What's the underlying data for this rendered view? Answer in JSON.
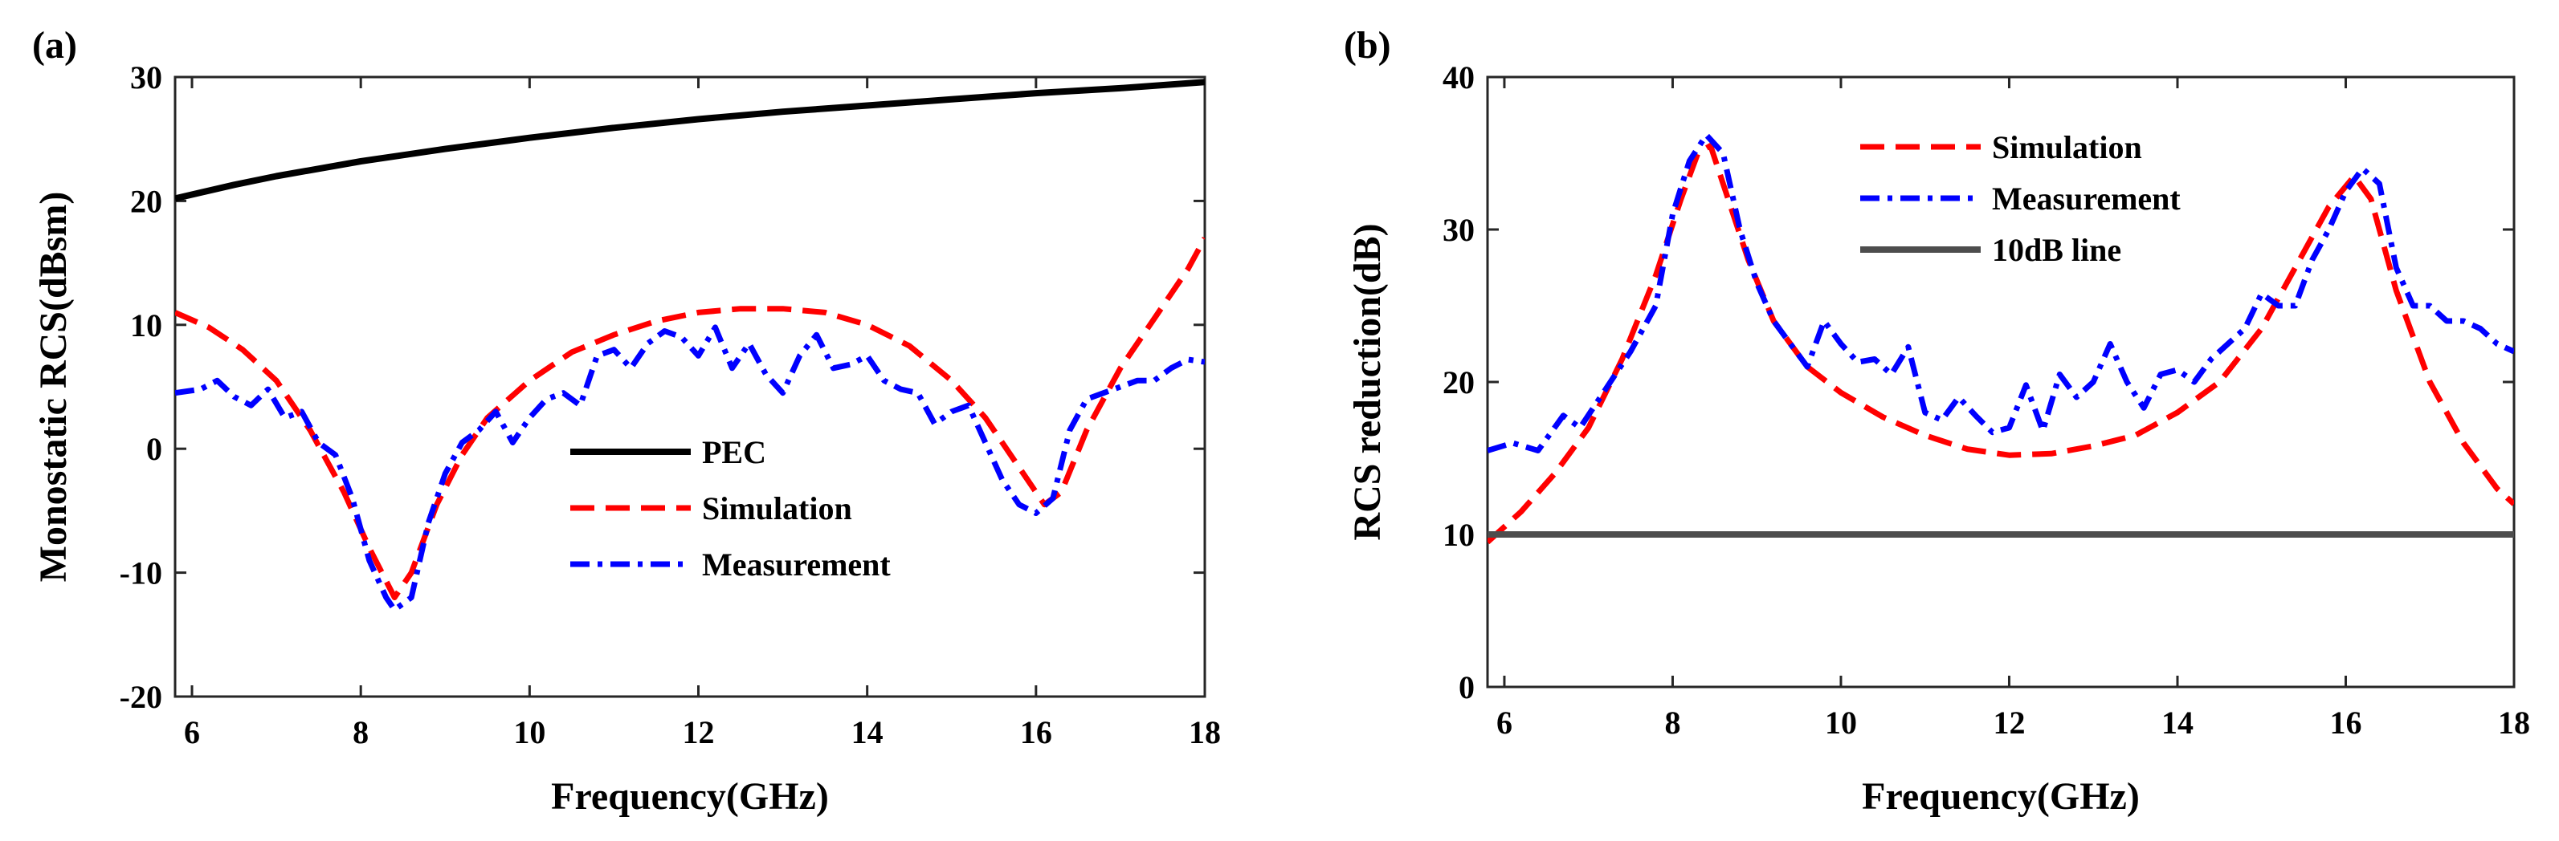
{
  "figure": {
    "panel_a": "(a)",
    "panel_b": "(b)"
  },
  "chart_data": [
    {
      "type": "line",
      "panel": "(a)",
      "xlabel": "Frequency(GHz)",
      "ylabel": "Monostatic RCS(dBsm)",
      "xlim": [
        5.8,
        18
      ],
      "ylim": [
        -20,
        30
      ],
      "xticks": [
        6,
        8,
        10,
        12,
        14,
        16,
        18
      ],
      "yticks": [
        -20,
        -10,
        0,
        10,
        20,
        30
      ],
      "legend": [
        "PEC",
        "Simulation",
        "Measurement"
      ],
      "series": [
        {
          "name": "PEC",
          "color": "#000000",
          "style": "solid",
          "x": [
            5.8,
            6.5,
            7,
            8,
            9,
            10,
            11,
            12,
            13,
            14,
            15,
            16,
            17,
            18
          ],
          "y": [
            20.2,
            21.3,
            22,
            23.2,
            24.2,
            25.1,
            25.9,
            26.6,
            27.2,
            27.7,
            28.2,
            28.7,
            29.1,
            29.6
          ]
        },
        {
          "name": "Simulation",
          "color": "#ff0000",
          "style": "dashed",
          "x": [
            5.8,
            6.2,
            6.6,
            7,
            7.4,
            7.8,
            8.1,
            8.4,
            8.6,
            8.9,
            9.2,
            9.5,
            10,
            10.5,
            11,
            11.5,
            12,
            12.5,
            13,
            13.5,
            14,
            14.5,
            15,
            15.4,
            15.8,
            16.1,
            16.3,
            16.6,
            17,
            17.4,
            17.8,
            18
          ],
          "y": [
            11,
            9.8,
            8,
            5.5,
            1.5,
            -3.5,
            -8,
            -12,
            -10,
            -4.5,
            -0.5,
            2.5,
            5.5,
            7.8,
            9.2,
            10.3,
            11,
            11.3,
            11.3,
            11,
            10,
            8.3,
            5.5,
            2.5,
            -1.5,
            -4.5,
            -3.5,
            1.5,
            6.5,
            10.5,
            14.5,
            17
          ]
        },
        {
          "name": "Measurement",
          "color": "#0000ff",
          "style": "dashdot",
          "x": [
            5.8,
            6.1,
            6.3,
            6.5,
            6.7,
            6.9,
            7.1,
            7.3,
            7.5,
            7.7,
            7.9,
            8.1,
            8.3,
            8.4,
            8.6,
            8.8,
            9,
            9.2,
            9.4,
            9.6,
            9.8,
            10,
            10.2,
            10.4,
            10.6,
            10.8,
            11,
            11.2,
            11.4,
            11.6,
            11.8,
            12,
            12.2,
            12.4,
            12.6,
            12.8,
            13,
            13.2,
            13.4,
            13.6,
            13.8,
            14,
            14.2,
            14.4,
            14.6,
            14.8,
            15,
            15.2,
            15.4,
            15.6,
            15.8,
            16,
            16.2,
            16.4,
            16.6,
            16.8,
            17,
            17.2,
            17.4,
            17.6,
            17.8,
            18
          ],
          "y": [
            4.5,
            4.8,
            5.5,
            4.2,
            3.5,
            4.8,
            2.5,
            3,
            0.5,
            -0.5,
            -4,
            -9,
            -12,
            -13,
            -12,
            -6,
            -2,
            0.5,
            1.5,
            3,
            0.5,
            2.5,
            4,
            4.5,
            3.5,
            7.5,
            8,
            6.5,
            8.5,
            9.5,
            9,
            7.5,
            9.8,
            6.5,
            8.5,
            6,
            4.5,
            7.5,
            9.2,
            6.5,
            6.8,
            7.5,
            5.5,
            4.8,
            4.5,
            2,
            3,
            3.5,
            0.5,
            -2.5,
            -4.5,
            -5.2,
            -4,
            1.5,
            4,
            4.5,
            5,
            5.5,
            5.5,
            6.5,
            7.2,
            7
          ]
        }
      ]
    },
    {
      "type": "line",
      "panel": "(b)",
      "xlabel": "Frequency(GHz)",
      "ylabel": "RCS reduction(dB)",
      "xlim": [
        5.8,
        18
      ],
      "ylim": [
        0,
        40
      ],
      "xticks": [
        6,
        8,
        10,
        12,
        14,
        16,
        18
      ],
      "yticks": [
        0,
        10,
        20,
        30,
        40
      ],
      "legend": [
        "Simulation",
        "Measurement",
        "10dB line"
      ],
      "series": [
        {
          "name": "Simulation",
          "color": "#ff0000",
          "style": "dashed",
          "x": [
            5.8,
            6.2,
            6.6,
            7,
            7.4,
            7.8,
            8.1,
            8.3,
            8.45,
            8.6,
            8.9,
            9.2,
            9.6,
            10,
            10.5,
            11,
            11.5,
            12,
            12.5,
            13,
            13.5,
            14,
            14.5,
            15,
            15.4,
            15.8,
            16.1,
            16.3,
            16.6,
            17,
            17.4,
            17.8,
            18
          ],
          "y": [
            9.5,
            11.5,
            14,
            17,
            21.5,
            27,
            32,
            35,
            35.5,
            33,
            28,
            24,
            21,
            19.3,
            17.7,
            16.5,
            15.6,
            15.2,
            15.3,
            15.8,
            16.5,
            18,
            20,
            23.5,
            27.5,
            31.5,
            33.5,
            32,
            26,
            20,
            16,
            13,
            12
          ]
        },
        {
          "name": "Measurement",
          "color": "#0000ff",
          "style": "dashdot",
          "x": [
            5.8,
            6.1,
            6.4,
            6.7,
            6.9,
            7.2,
            7.5,
            7.8,
            8,
            8.2,
            8.4,
            8.6,
            8.8,
            9,
            9.2,
            9.4,
            9.6,
            9.8,
            10,
            10.2,
            10.4,
            10.6,
            10.8,
            11,
            11.2,
            11.4,
            11.6,
            11.8,
            12,
            12.2,
            12.4,
            12.6,
            12.8,
            13,
            13.2,
            13.4,
            13.6,
            13.8,
            14,
            14.2,
            14.4,
            14.6,
            14.8,
            15,
            15.2,
            15.4,
            15.6,
            15.8,
            16,
            16.2,
            16.4,
            16.6,
            16.8,
            17,
            17.2,
            17.4,
            17.6,
            17.8,
            18
          ],
          "y": [
            15.5,
            16,
            15.5,
            17.8,
            17,
            19.5,
            22,
            25,
            31,
            34.5,
            36.2,
            35,
            30,
            26.5,
            24,
            22.5,
            21,
            24,
            22.5,
            21.3,
            21.5,
            20.5,
            22.3,
            18,
            17.5,
            19,
            17.8,
            16.7,
            17,
            19.8,
            16.8,
            20.5,
            19,
            20,
            22.5,
            20,
            18.3,
            20.5,
            20.8,
            20,
            21.5,
            22.5,
            23.5,
            25.8,
            25,
            25,
            28,
            30,
            32.5,
            34,
            33,
            27.5,
            25,
            25,
            24,
            24,
            23.5,
            22.5,
            22
          ]
        },
        {
          "name": "10dB line",
          "color": "#4d4d4d",
          "style": "solid",
          "x": [
            5.8,
            18
          ],
          "y": [
            10,
            10
          ]
        }
      ]
    }
  ]
}
